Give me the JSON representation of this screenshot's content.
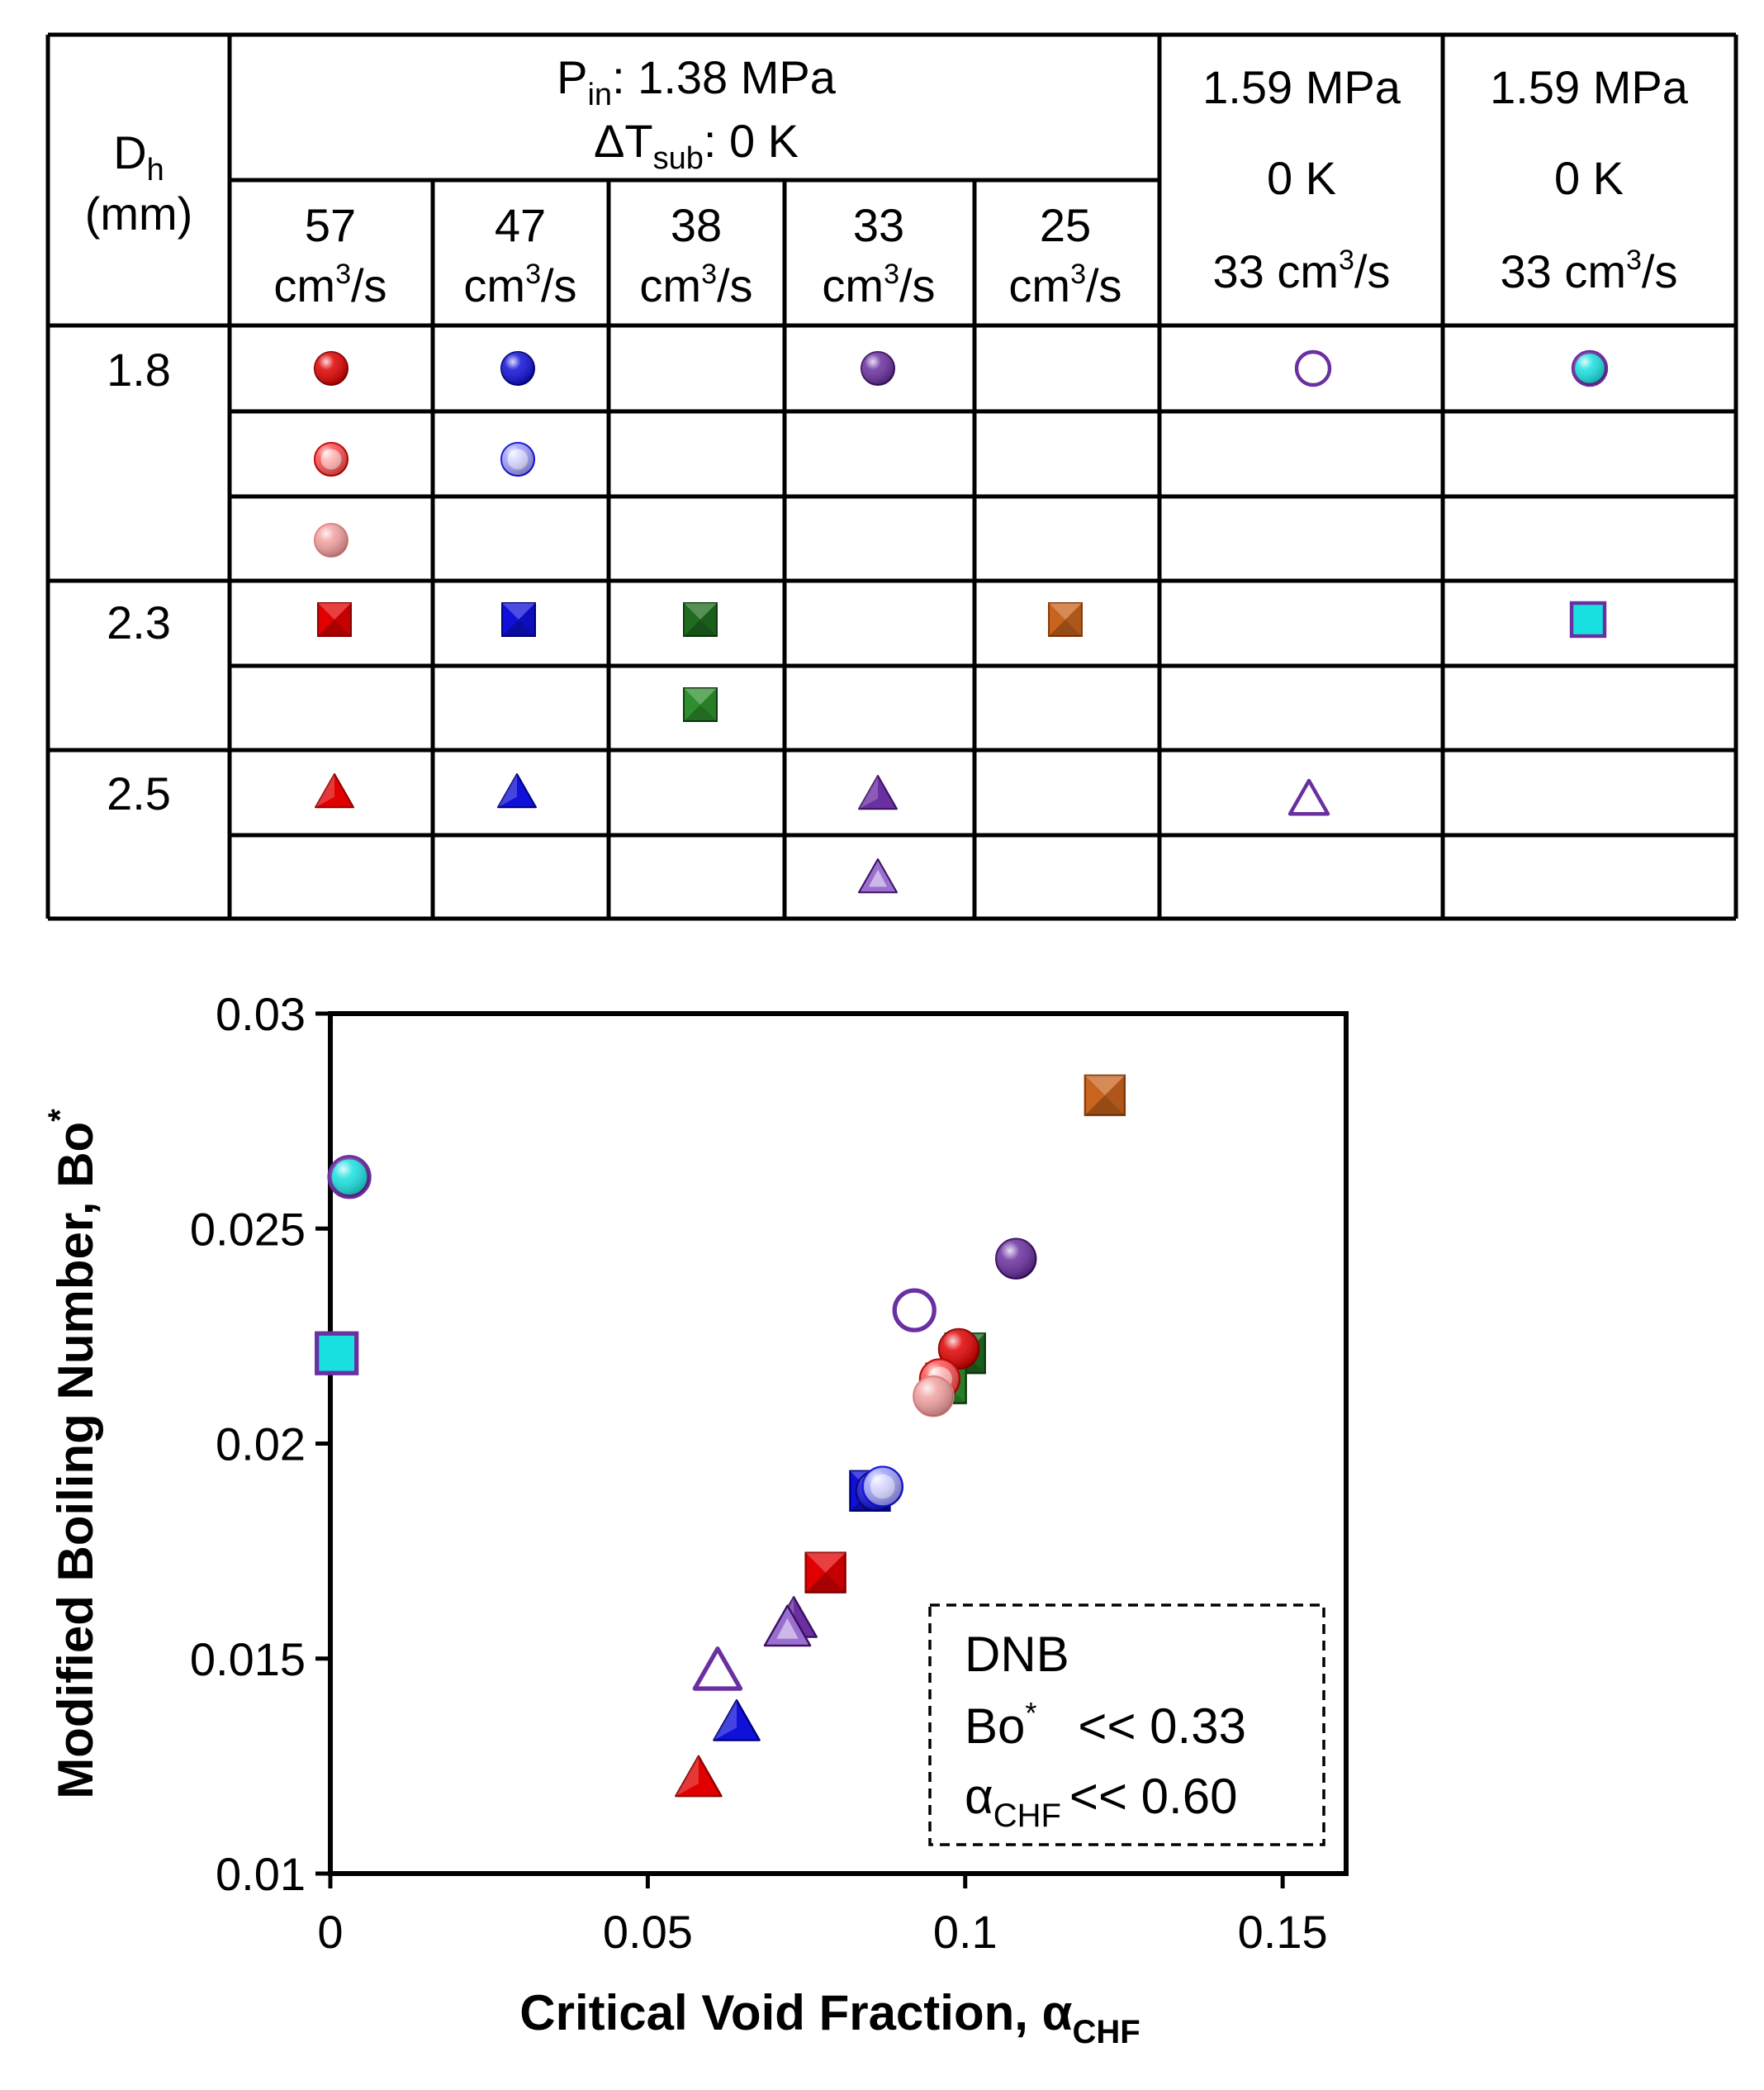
{
  "legend_table": {
    "dh_header": {
      "main": "D",
      "sub": "h",
      "unit": "(mm)"
    },
    "group_header": {
      "line1_prefix": "P",
      "line1_sub": "in",
      "line1_value": ": 1.38 MPa",
      "line2_prefix": "ΔT",
      "line2_sub": "sub",
      "line2_value": ": 0 K"
    },
    "flow_columns": [
      {
        "value": "57",
        "unit_a": "cm",
        "unit_sup": "3",
        "unit_b": "/s"
      },
      {
        "value": "47",
        "unit_a": "cm",
        "unit_sup": "3",
        "unit_b": "/s"
      },
      {
        "value": "38",
        "unit_a": "cm",
        "unit_sup": "3",
        "unit_b": "/s"
      },
      {
        "value": "33",
        "unit_a": "cm",
        "unit_sup": "3",
        "unit_b": "/s"
      },
      {
        "value": "25",
        "unit_a": "cm",
        "unit_sup": "3",
        "unit_b": "/s"
      }
    ],
    "extra_columns": [
      {
        "pressure": "1.59 MPa",
        "subcool": "0 K",
        "flow_a": "33 cm",
        "flow_sup": "3",
        "flow_b": "/s"
      },
      {
        "pressure": "1.59 MPa",
        "subcool": "0 K",
        "flow_a": "33 cm",
        "flow_sup": "3",
        "flow_b": "/s"
      }
    ],
    "dh_values": [
      "1.8",
      "2.3",
      "2.5"
    ],
    "colors": {
      "red": "#e00000",
      "blue": "#1010d8",
      "purple": "#6a2fa0",
      "green": "#1f6b1f",
      "orange": "#c8641e",
      "cyan": "#19e0e0",
      "pink": "#f2a0a0"
    }
  },
  "chart_data": {
    "type": "scatter",
    "xlabel": "Critical Void Fraction, α",
    "xlabel_sub": "CHF",
    "ylabel": "Modified Boiling Number, Bo",
    "ylabel_sup": "*",
    "xlim": [
      0,
      0.16
    ],
    "ylim": [
      0.01,
      0.03
    ],
    "x_ticks": [
      0,
      0.05,
      0.1,
      0.15
    ],
    "x_tick_labels": [
      "0",
      "0.05",
      "0.1",
      "0.15"
    ],
    "y_ticks": [
      0.01,
      0.015,
      0.02,
      0.025,
      0.03
    ],
    "y_tick_labels": [
      "0.01",
      "0.015",
      "0.02",
      "0.025",
      "0.03"
    ],
    "grid": false,
    "annotation": {
      "line1": "DNB",
      "line2_a": "Bo",
      "line2_sup": "*",
      "line2_b": "   << 0.33",
      "line3_a": "α",
      "line3_sub": "CHF",
      "line3_b": "<< 0.60"
    },
    "points": [
      {
        "x": 0.003,
        "y": 0.0262,
        "marker": "circle",
        "fill": "#19e0e0",
        "edge": "#6a2fa0",
        "style": "bordered"
      },
      {
        "x": 0.001,
        "y": 0.0221,
        "marker": "square",
        "fill": "#19e0e0",
        "edge": "#6a2fa0",
        "style": "bordered"
      },
      {
        "x": 0.122,
        "y": 0.0281,
        "marker": "square",
        "fill": "#c8641e",
        "edge": "#8a3c0a",
        "style": "pyramid"
      },
      {
        "x": 0.108,
        "y": 0.0243,
        "marker": "circle",
        "fill": "#6a2fa0",
        "edge": "#3a1060",
        "style": "solid"
      },
      {
        "x": 0.092,
        "y": 0.0231,
        "marker": "circle",
        "fill": "#ffffff",
        "edge": "#6a2fa0",
        "style": "hollow"
      },
      {
        "x": 0.1,
        "y": 0.0221,
        "marker": "square",
        "fill": "#1f6b1f",
        "edge": "#0e3e0e",
        "style": "pyramid"
      },
      {
        "x": 0.097,
        "y": 0.0214,
        "marker": "square",
        "fill": "#2f8f2f",
        "edge": "#0e3e0e",
        "style": "pyramid"
      },
      {
        "x": 0.099,
        "y": 0.0222,
        "marker": "circle",
        "fill": "#e00000",
        "edge": "#900000",
        "style": "solid"
      },
      {
        "x": 0.096,
        "y": 0.0215,
        "marker": "circle",
        "fill": "#ff5050",
        "edge": "#c00000",
        "style": "ring"
      },
      {
        "x": 0.095,
        "y": 0.0211,
        "marker": "circle",
        "fill": "#f2a0a0",
        "edge": "#e08080",
        "style": "soft"
      },
      {
        "x": 0.085,
        "y": 0.0189,
        "marker": "square",
        "fill": "#1010d8",
        "edge": "#000080",
        "style": "pyramid"
      },
      {
        "x": 0.086,
        "y": 0.0189,
        "marker": "circle",
        "fill": "#1010d8",
        "edge": "#000080",
        "style": "solid"
      },
      {
        "x": 0.087,
        "y": 0.019,
        "marker": "circle",
        "fill": "#a0a0ff",
        "edge": "#1010d8",
        "style": "ring"
      },
      {
        "x": 0.078,
        "y": 0.017,
        "marker": "square",
        "fill": "#e00000",
        "edge": "#900000",
        "style": "pyramid"
      },
      {
        "x": 0.073,
        "y": 0.0159,
        "marker": "triangle",
        "fill": "#6a2fa0",
        "edge": "#3a1060",
        "style": "solid"
      },
      {
        "x": 0.072,
        "y": 0.0157,
        "marker": "triangle",
        "fill": "#9a6fd0",
        "edge": "#3a1060",
        "style": "ring"
      },
      {
        "x": 0.061,
        "y": 0.0147,
        "marker": "triangle",
        "fill": "#ffffff",
        "edge": "#6a2fa0",
        "style": "hollow"
      },
      {
        "x": 0.064,
        "y": 0.0135,
        "marker": "triangle",
        "fill": "#1010d8",
        "edge": "#000080",
        "style": "solid"
      },
      {
        "x": 0.058,
        "y": 0.0122,
        "marker": "triangle",
        "fill": "#e00000",
        "edge": "#900000",
        "style": "solid"
      }
    ]
  }
}
